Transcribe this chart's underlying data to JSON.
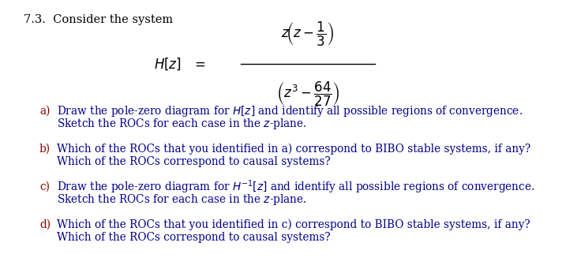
{
  "background_color": "#ffffff",
  "title": "7.3.  Consider the system",
  "title_color": "#000000",
  "title_fontsize": 10.5,
  "formula_color": "#000000",
  "label_color": "#8B0000",
  "text_color": "#00008B",
  "body_fontsize": 9.8,
  "items": [
    {
      "label": "a)",
      "line1": "Draw the pole-zero diagram for $H[z]$ and identify all possible regions of convergence.",
      "line2": "Sketch the ROCs for each case in the $z$-plane."
    },
    {
      "label": "b)",
      "line1": "Which of the ROCs that you identified in a) correspond to BIBO stable systems, if any?",
      "line2": "Which of the ROCs correspond to causal systems?"
    },
    {
      "label": "c)",
      "line1": "Draw the pole-zero diagram for $H^{-1}[z]$ and identify all possible regions of convergence.",
      "line2": "Sketch the ROCs for each case in the $z$-plane."
    },
    {
      "label": "d)",
      "line1": "Which of the ROCs that you identified in c) correspond to BIBO stable systems, if any?",
      "line2": "Which of the ROCs correspond to causal systems?"
    }
  ]
}
